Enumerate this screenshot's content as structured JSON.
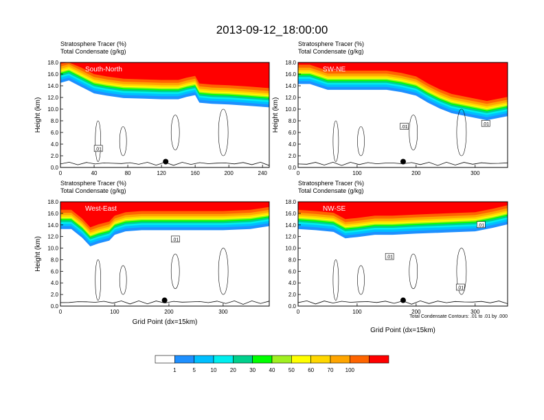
{
  "page": {
    "title": "2013-09-12_18:00:00"
  },
  "panel_titles": {
    "line1": "Stratosphere Tracer   (%)",
    "line2": "Total Condensate   (g/kg)"
  },
  "axis": {
    "ylabel": "Height (km)",
    "xlabel": "Grid Point (dx=15km)"
  },
  "contour_note": "Total Condensate Contours: .01 to .01 by .000",
  "contour_label": ".01",
  "colorbar": {
    "colors": [
      "#ffffff",
      "#1e90ff",
      "#00bfff",
      "#00eeee",
      "#00d08c",
      "#00ff00",
      "#a0f020",
      "#ffff00",
      "#ffd700",
      "#ffa500",
      "#ff6400",
      "#ff0000"
    ],
    "labels": [
      "1",
      "5",
      "10",
      "20",
      "30",
      "40",
      "50",
      "60",
      "70",
      "100"
    ]
  },
  "chart_data": [
    {
      "type": "contour-cross-section",
      "label": "South-North",
      "xlim": [
        0,
        248
      ],
      "ylim": [
        0,
        18
      ],
      "xticks": [
        "0",
        "40",
        "80",
        "120",
        "160",
        "200",
        "240"
      ],
      "yticks": [
        "0.0",
        "2.0",
        "4.0",
        "6.0",
        "8.0",
        "10.0",
        "12.0",
        "14.0",
        "16.0",
        "18.0"
      ],
      "xlabel": "",
      "ylabel": "Height (km)",
      "marker": [
        125,
        1.0
      ],
      "tropopause_height_km": [
        [
          0,
          15.2
        ],
        [
          10,
          15.6
        ],
        [
          25,
          14.5
        ],
        [
          40,
          13.4
        ],
        [
          55,
          13.0
        ],
        [
          75,
          12.6
        ],
        [
          100,
          12.5
        ],
        [
          120,
          12.4
        ],
        [
          140,
          12.4
        ],
        [
          150,
          12.8
        ],
        [
          160,
          13.1
        ],
        [
          165,
          11.8
        ],
        [
          180,
          11.6
        ],
        [
          200,
          11.5
        ],
        [
          220,
          11.3
        ],
        [
          248,
          11.0
        ]
      ],
      "contour_labels": [
        [
          45,
          3.2
        ]
      ]
    },
    {
      "type": "contour-cross-section",
      "label": "SW-NE",
      "xlim": [
        0,
        355
      ],
      "ylim": [
        0,
        18
      ],
      "xticks": [
        "0",
        "100",
        "200",
        "300"
      ],
      "yticks": [
        "0.0",
        "2.0",
        "4.0",
        "6.0",
        "8.0",
        "10.0",
        "12.0",
        "14.0",
        "16.0",
        "18.0"
      ],
      "xlabel": "",
      "ylabel": "Height (km)",
      "marker": [
        178,
        1.0
      ],
      "tropopause_height_km": [
        [
          0,
          15.0
        ],
        [
          20,
          15.0
        ],
        [
          50,
          14.0
        ],
        [
          100,
          14.0
        ],
        [
          150,
          14.0
        ],
        [
          175,
          13.6
        ],
        [
          200,
          13.0
        ],
        [
          220,
          11.8
        ],
        [
          240,
          10.8
        ],
        [
          260,
          10.0
        ],
        [
          300,
          9.2
        ],
        [
          320,
          8.8
        ],
        [
          355,
          9.5
        ]
      ],
      "contour_labels": [
        [
          180,
          7.0
        ],
        [
          318,
          7.5
        ]
      ]
    },
    {
      "type": "contour-cross-section",
      "label": "West-East",
      "xlim": [
        0,
        385
      ],
      "ylim": [
        0,
        18
      ],
      "xticks": [
        "0",
        "100",
        "200",
        "300"
      ],
      "yticks": [
        "0.0",
        "2.0",
        "4.0",
        "6.0",
        "8.0",
        "10.0",
        "12.0",
        "14.0",
        "16.0",
        "18.0"
      ],
      "xlabel": "Grid Point (dx=15km)",
      "ylabel": "Height (km)",
      "marker": [
        192,
        1.0
      ],
      "tropopause_height_km": [
        [
          0,
          14.0
        ],
        [
          20,
          14.0
        ],
        [
          40,
          12.5
        ],
        [
          55,
          11.0
        ],
        [
          70,
          11.5
        ],
        [
          90,
          12.0
        ],
        [
          100,
          13.0
        ],
        [
          120,
          13.6
        ],
        [
          150,
          13.8
        ],
        [
          200,
          13.8
        ],
        [
          250,
          13.8
        ],
        [
          300,
          13.8
        ],
        [
          350,
          14.0
        ],
        [
          385,
          14.5
        ]
      ],
      "contour_labels": [
        [
          212,
          11.5
        ]
      ]
    },
    {
      "type": "contour-cross-section",
      "label": "NW-SE",
      "xlim": [
        0,
        355
      ],
      "ylim": [
        0,
        18
      ],
      "xticks": [
        "0",
        "100",
        "200",
        "300"
      ],
      "yticks": [
        "0.0",
        "2.0",
        "4.0",
        "6.0",
        "8.0",
        "10.0",
        "12.0",
        "14.0",
        "16.0",
        "18.0"
      ],
      "xlabel": "Grid Point (dx=15km)",
      "ylabel": "",
      "marker": [
        178,
        1.0
      ],
      "tropopause_height_km": [
        [
          0,
          14.0
        ],
        [
          30,
          13.8
        ],
        [
          60,
          13.5
        ],
        [
          80,
          12.4
        ],
        [
          100,
          12.6
        ],
        [
          130,
          13.0
        ],
        [
          160,
          13.0
        ],
        [
          200,
          13.2
        ],
        [
          250,
          13.4
        ],
        [
          300,
          13.6
        ],
        [
          330,
          14.2
        ],
        [
          355,
          14.8
        ]
      ],
      "contour_labels": [
        [
          155,
          8.5
        ],
        [
          275,
          3.2
        ],
        [
          310,
          14.0
        ]
      ]
    }
  ]
}
